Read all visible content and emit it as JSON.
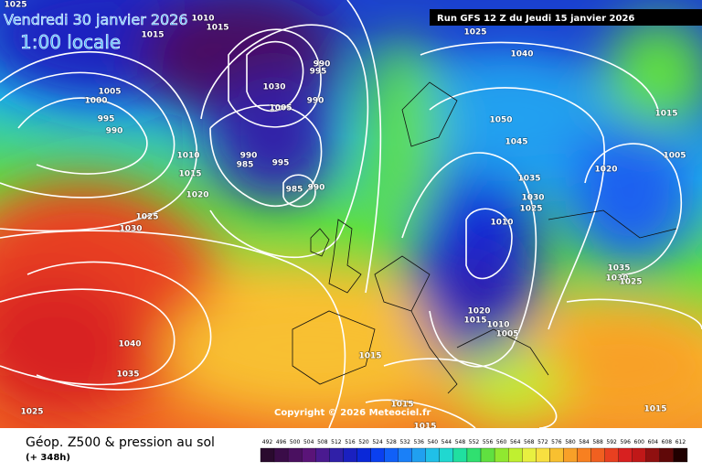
{
  "header": {
    "date": "Vendredi 30 janvier 2026",
    "time": "1:00 locale",
    "run": "Run GFS 12 Z du Jeudi 15 janvier 2026"
  },
  "copyright": "Copyright © 2026 Meteociel.fr",
  "footer": {
    "title": "Géop. Z500 & pression au sol",
    "lead": "(+ 348h)"
  },
  "legend": {
    "ticks": [
      492,
      496,
      500,
      504,
      508,
      512,
      516,
      520,
      524,
      528,
      532,
      536,
      540,
      544,
      548,
      552,
      556,
      560,
      564,
      568,
      572,
      576,
      580,
      584,
      588,
      592,
      596,
      600,
      604,
      608,
      612
    ],
    "colors": [
      "#2a0a2e",
      "#3a0c48",
      "#4a1060",
      "#5a1478",
      "#4a1a90",
      "#3020a8",
      "#1a20c0",
      "#0a28d8",
      "#0a40f0",
      "#1060f8",
      "#1a80f8",
      "#20a0f0",
      "#20c0e8",
      "#20d8d0",
      "#20e0a0",
      "#30e070",
      "#60e040",
      "#90e830",
      "#c0f030",
      "#e8f040",
      "#f8e040",
      "#f8c030",
      "#f8a028",
      "#f88020",
      "#f06020",
      "#e84020",
      "#d82020",
      "#c01818",
      "#901010",
      "#600808",
      "#200000"
    ]
  },
  "isobar_labels": [
    "1025",
    "1010",
    "1015",
    "1015",
    "1005",
    "1000",
    "995",
    "990",
    "1030",
    "1005",
    "990",
    "995",
    "990",
    "990",
    "985",
    "995",
    "985",
    "990",
    "1010",
    "1015",
    "1020",
    "1025",
    "1030",
    "1025",
    "1040",
    "1050",
    "1045",
    "1035",
    "1030",
    "1025",
    "1010",
    "1020",
    "1005",
    "1015",
    "1035",
    "1030",
    "1025",
    "1020",
    "1015",
    "1010",
    "1005",
    "1040",
    "1035",
    "1015",
    "1015",
    "1015",
    "1015",
    "1025"
  ]
}
